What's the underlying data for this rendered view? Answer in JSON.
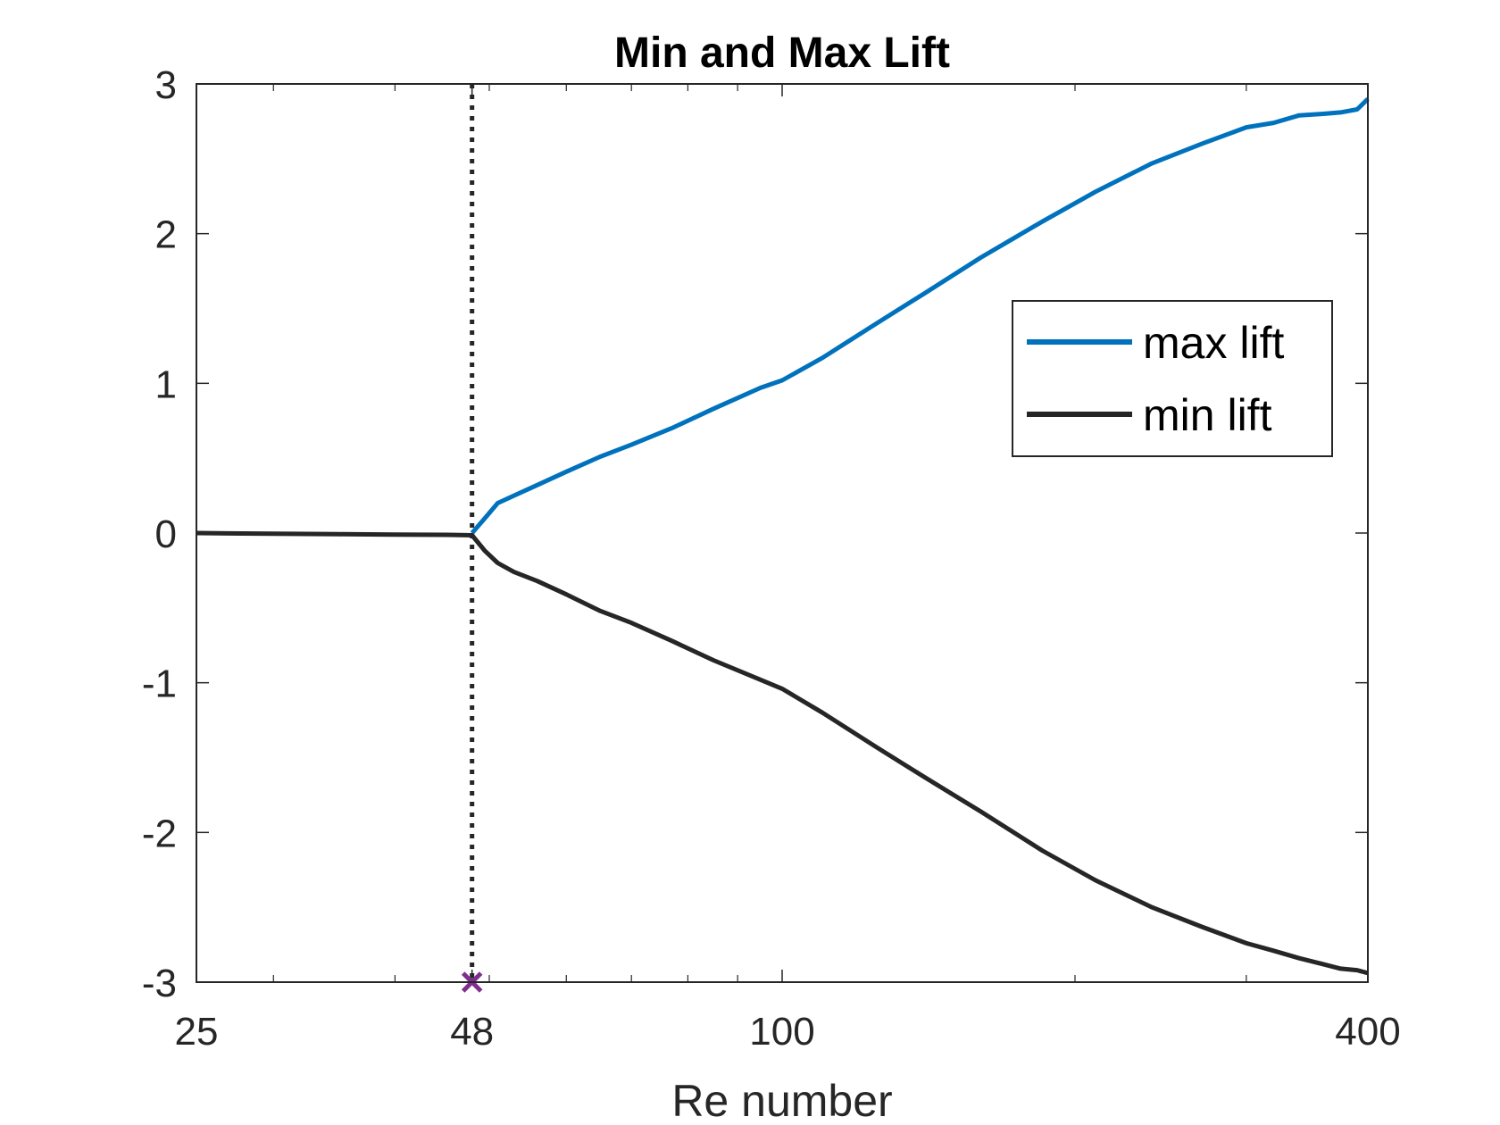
{
  "chart_data": {
    "type": "line",
    "title": "Min and Max Lift",
    "xlabel": "Re number",
    "ylabel": "",
    "x_scale": "log",
    "xlim": [
      25,
      400
    ],
    "ylim": [
      -3,
      3
    ],
    "x_ticks": [
      25,
      48,
      100,
      400
    ],
    "x_tick_labels": [
      "25",
      "48",
      "100",
      "400"
    ],
    "y_ticks": [
      -3,
      -2,
      -1,
      0,
      1,
      2,
      3
    ],
    "y_tick_labels": [
      "-3",
      "-2",
      "-1",
      "0",
      "1",
      "2",
      "3"
    ],
    "grid": false,
    "legend_position": "right",
    "series": [
      {
        "name": "max lift",
        "color": "#0072BD",
        "x": [
          48,
          49.5,
          51,
          53,
          56,
          60,
          65,
          70,
          77,
          85,
          95,
          100,
          110,
          125,
          140,
          160,
          185,
          210,
          240,
          270,
          300,
          320,
          340,
          360,
          375,
          390,
          400
        ],
        "y": [
          0,
          0.1,
          0.2,
          0.25,
          0.32,
          0.41,
          0.51,
          0.59,
          0.7,
          0.83,
          0.97,
          1.02,
          1.17,
          1.4,
          1.6,
          1.84,
          2.08,
          2.28,
          2.47,
          2.6,
          2.71,
          2.74,
          2.79,
          2.8,
          2.81,
          2.83,
          2.9
        ]
      },
      {
        "name": "min lift",
        "color": "#262626",
        "x": [
          25,
          30,
          35,
          40,
          45,
          48,
          49.5,
          51,
          53,
          56,
          60,
          65,
          70,
          77,
          85,
          95,
          100,
          110,
          125,
          140,
          160,
          185,
          210,
          240,
          270,
          300,
          320,
          340,
          360,
          375,
          390,
          400
        ],
        "y": [
          0,
          -0.005,
          -0.008,
          -0.01,
          -0.012,
          -0.015,
          -0.12,
          -0.2,
          -0.26,
          -0.32,
          -0.41,
          -0.52,
          -0.6,
          -0.72,
          -0.85,
          -0.98,
          -1.04,
          -1.2,
          -1.43,
          -1.63,
          -1.86,
          -2.12,
          -2.32,
          -2.5,
          -2.63,
          -2.74,
          -2.79,
          -2.84,
          -2.88,
          -2.91,
          -2.92,
          -2.94
        ]
      }
    ],
    "reference_line": {
      "x": 48,
      "style": "dotted",
      "color": "#262626"
    },
    "marker": {
      "x": 48,
      "y": -3,
      "symbol": "x",
      "color": "#7E2F8E"
    }
  }
}
